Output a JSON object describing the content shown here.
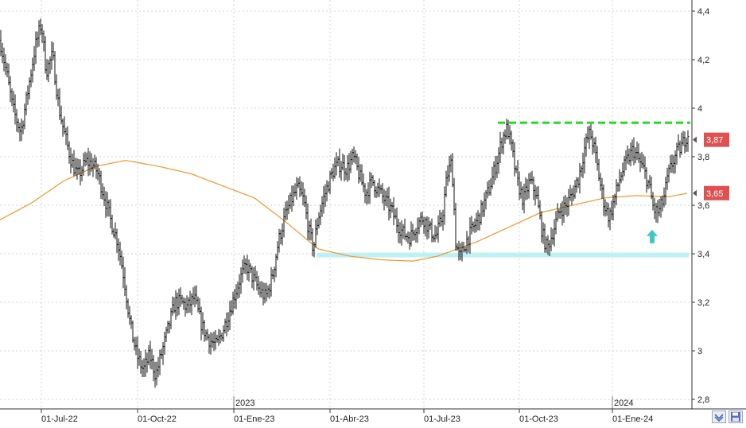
{
  "chart_data": {
    "type": "bar",
    "subtype": "ohlc-price-chart",
    "ylim": [
      2.8,
      4.45
    ],
    "y_ticks": [
      "4,4",
      "4,2",
      "4",
      "3,8",
      "3,6",
      "3,4",
      "3,2",
      "3",
      "2,8"
    ],
    "y_tick_values": [
      4.4,
      4.2,
      4.0,
      3.8,
      3.6,
      3.4,
      3.2,
      3.0,
      2.8
    ],
    "x_ticks": [
      "01-Jul-22",
      "01-Oct-22",
      "01-Ene-23",
      "01-Abr-23",
      "01-Jul-23",
      "01-Oct-23",
      "01-Ene-24"
    ],
    "year_labels": [
      "2023",
      "2024"
    ],
    "grid": true,
    "price_anchors": [
      [
        0,
        4.28
      ],
      [
        8,
        4.15
      ],
      [
        16,
        4.0
      ],
      [
        26,
        3.9
      ],
      [
        34,
        4.05
      ],
      [
        44,
        4.25
      ],
      [
        52,
        4.35
      ],
      [
        58,
        4.15
      ],
      [
        66,
        4.22
      ],
      [
        74,
        4.0
      ],
      [
        82,
        3.88
      ],
      [
        90,
        3.78
      ],
      [
        98,
        3.72
      ],
      [
        108,
        3.78
      ],
      [
        116,
        3.77
      ],
      [
        122,
        3.74
      ],
      [
        130,
        3.65
      ],
      [
        138,
        3.55
      ],
      [
        148,
        3.45
      ],
      [
        156,
        3.3
      ],
      [
        164,
        3.1
      ],
      [
        172,
        2.98
      ],
      [
        180,
        2.92
      ],
      [
        188,
        2.98
      ],
      [
        196,
        2.9
      ],
      [
        204,
        3.0
      ],
      [
        212,
        3.1
      ],
      [
        220,
        3.2
      ],
      [
        228,
        3.2
      ],
      [
        236,
        3.18
      ],
      [
        244,
        3.22
      ],
      [
        254,
        3.1
      ],
      [
        262,
        3.05
      ],
      [
        272,
        3.02
      ],
      [
        282,
        3.1
      ],
      [
        292,
        3.2
      ],
      [
        302,
        3.3
      ],
      [
        310,
        3.35
      ],
      [
        318,
        3.3
      ],
      [
        326,
        3.25
      ],
      [
        334,
        3.22
      ],
      [
        342,
        3.3
      ],
      [
        350,
        3.45
      ],
      [
        358,
        3.55
      ],
      [
        366,
        3.62
      ],
      [
        374,
        3.67
      ],
      [
        382,
        3.62
      ],
      [
        388,
        3.5
      ],
      [
        394,
        3.42
      ],
      [
        400,
        3.55
      ],
      [
        406,
        3.62
      ],
      [
        414,
        3.7
      ],
      [
        420,
        3.75
      ],
      [
        428,
        3.77
      ],
      [
        436,
        3.75
      ],
      [
        444,
        3.8
      ],
      [
        452,
        3.72
      ],
      [
        460,
        3.65
      ],
      [
        468,
        3.7
      ],
      [
        476,
        3.66
      ],
      [
        484,
        3.62
      ],
      [
        492,
        3.58
      ],
      [
        500,
        3.52
      ],
      [
        508,
        3.48
      ],
      [
        516,
        3.47
      ],
      [
        524,
        3.52
      ],
      [
        532,
        3.55
      ],
      [
        540,
        3.5
      ],
      [
        548,
        3.47
      ],
      [
        556,
        3.55
      ],
      [
        562,
        3.72
      ],
      [
        568,
        3.78
      ],
      [
        573,
        3.45
      ],
      [
        578,
        3.38
      ],
      [
        586,
        3.45
      ],
      [
        594,
        3.5
      ],
      [
        602,
        3.55
      ],
      [
        610,
        3.62
      ],
      [
        618,
        3.7
      ],
      [
        626,
        3.8
      ],
      [
        632,
        3.88
      ],
      [
        638,
        3.92
      ],
      [
        644,
        3.82
      ],
      [
        650,
        3.7
      ],
      [
        658,
        3.62
      ],
      [
        666,
        3.7
      ],
      [
        674,
        3.65
      ],
      [
        682,
        3.48
      ],
      [
        688,
        3.42
      ],
      [
        696,
        3.5
      ],
      [
        704,
        3.58
      ],
      [
        712,
        3.6
      ],
      [
        720,
        3.65
      ],
      [
        728,
        3.72
      ],
      [
        736,
        3.85
      ],
      [
        742,
        3.9
      ],
      [
        748,
        3.82
      ],
      [
        754,
        3.7
      ],
      [
        760,
        3.6
      ],
      [
        766,
        3.55
      ],
      [
        772,
        3.62
      ],
      [
        780,
        3.72
      ],
      [
        788,
        3.78
      ],
      [
        796,
        3.83
      ],
      [
        804,
        3.78
      ],
      [
        810,
        3.74
      ],
      [
        816,
        3.68
      ],
      [
        822,
        3.58
      ],
      [
        828,
        3.57
      ],
      [
        834,
        3.62
      ],
      [
        840,
        3.72
      ],
      [
        846,
        3.78
      ],
      [
        852,
        3.82
      ],
      [
        858,
        3.85
      ],
      [
        862,
        3.88
      ],
      [
        866,
        3.9
      ]
    ],
    "sma_anchors": [
      [
        0,
        3.54
      ],
      [
        40,
        3.61
      ],
      [
        80,
        3.7
      ],
      [
        120,
        3.76
      ],
      [
        158,
        3.785
      ],
      [
        200,
        3.76
      ],
      [
        240,
        3.73
      ],
      [
        280,
        3.68
      ],
      [
        320,
        3.63
      ],
      [
        360,
        3.53
      ],
      [
        400,
        3.42
      ],
      [
        440,
        3.39
      ],
      [
        480,
        3.375
      ],
      [
        520,
        3.37
      ],
      [
        550,
        3.39
      ],
      [
        600,
        3.45
      ],
      [
        640,
        3.51
      ],
      [
        680,
        3.57
      ],
      [
        720,
        3.6
      ],
      [
        760,
        3.63
      ],
      [
        800,
        3.64
      ],
      [
        840,
        3.635
      ],
      [
        866,
        3.65
      ]
    ],
    "last_price": {
      "label": "3,87",
      "value": 3.87
    },
    "sma_last": {
      "label": "3,65",
      "value": 3.65
    },
    "resistance_level": 3.94,
    "resistance_range": [
      626,
      868
    ],
    "support_level": 3.395,
    "support_range": [
      398,
      866
    ],
    "arrow": {
      "x": 820,
      "value": 3.45,
      "direction": "up"
    },
    "colors": {
      "price": "#111111",
      "sma": "#f0962a",
      "resistance": "#22dd22",
      "support": "#bff0f3",
      "grid": "#cfd3da",
      "last_price_box": "#e05050",
      "sma_box": "#e05050",
      "arrow": "#3ec9c0",
      "axis_text": "#222222"
    }
  },
  "ui": {
    "zoom_icon": "double-chevron-icon",
    "save_icon": "floppy-disk-icon"
  }
}
